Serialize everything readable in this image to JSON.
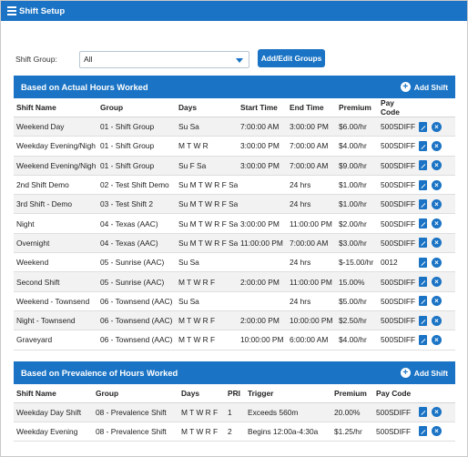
{
  "header": {
    "title": "Shift Setup"
  },
  "filter": {
    "label": "Shift Group:",
    "selected": "All",
    "add_edit_label": "Add/Edit Groups"
  },
  "actual": {
    "title": "Based on Actual Hours Worked",
    "add_label": "Add Shift",
    "columns": [
      "Shift Name",
      "Group",
      "Days",
      "Start Time",
      "End Time",
      "Premium",
      "Pay Code"
    ],
    "rows": [
      [
        "Weekend Day",
        "01 - Shift Group",
        "Su Sa",
        "7:00:00 AM",
        "3:00:00 PM",
        "$6.00/hr",
        "500SDIFF"
      ],
      [
        "Weekday Evening/Nigh",
        "01 - Shift Group",
        "M T W R",
        "3:00:00 PM",
        "7:00:00 AM",
        "$4.00/hr",
        "500SDIFF"
      ],
      [
        "Weekend Evening/Nigh",
        "01 - Shift Group",
        "Su F Sa",
        "3:00:00 PM",
        "7:00:00 AM",
        "$9.00/hr",
        "500SDIFF"
      ],
      [
        "2nd Shift Demo",
        "02 - Test Shift Demo",
        "Su M T W R F Sa",
        "",
        "24 hrs",
        "$1.00/hr",
        "500SDIFF"
      ],
      [
        "3rd Shift - Demo",
        "03 - Test Shift 2",
        "Su M T W R F Sa",
        "",
        "24 hrs",
        "$1.00/hr",
        "500SDIFF"
      ],
      [
        "Night",
        "04 - Texas (AAC)",
        "Su M T W R F Sa",
        "3:00:00 PM",
        "11:00:00 PM",
        "$2.00/hr",
        "500SDIFF"
      ],
      [
        "Overnight",
        "04 - Texas (AAC)",
        "Su M T W R F Sa",
        "11:00:00 PM",
        "7:00:00 AM",
        "$3.00/hr",
        "500SDIFF"
      ],
      [
        "Weekend",
        "05 - Sunrise (AAC)",
        "Su Sa",
        "",
        "24 hrs",
        "$-15.00/hr",
        "0012"
      ],
      [
        "Second Shift",
        "05 - Sunrise (AAC)",
        "M T W R F",
        "2:00:00 PM",
        "11:00:00 PM",
        "15.00%",
        "500SDIFF"
      ],
      [
        "Weekend - Townsend",
        "06 - Townsend (AAC)",
        "Su Sa",
        "",
        "24 hrs",
        "$5.00/hr",
        "500SDIFF"
      ],
      [
        "Night - Townsend",
        "06 - Townsend (AAC)",
        "M T W R F",
        "2:00:00 PM",
        "10:00:00 PM",
        "$2.50/hr",
        "500SDIFF"
      ],
      [
        "Graveyard",
        "06 - Townsend (AAC)",
        "M T W R F",
        "10:00:00 PM",
        "6:00:00 AM",
        "$4.00/hr",
        "500SDIFF"
      ]
    ]
  },
  "prevalence": {
    "title": "Based on Prevalence of Hours Worked",
    "add_label": "Add Shift",
    "columns": [
      "Shift Name",
      "Group",
      "Days",
      "PRI",
      "Trigger",
      "Premium",
      "Pay Code"
    ],
    "rows": [
      [
        "Weekday Day Shift",
        "08 - Prevalence Shift",
        "M T W R F",
        "1",
        "Exceeds 560m",
        "20.00%",
        "500SDIFF"
      ],
      [
        "Weekday Evening",
        "08 - Prevalence Shift",
        "M T W R F",
        "2",
        "Begins 12:00a-4:30a",
        "$1.25/hr",
        "500SDIFF"
      ]
    ]
  },
  "icons": {
    "menu": "hamburger-icon",
    "edit": "edit-icon",
    "delete": "delete-icon",
    "add": "plus-circle-icon",
    "dropdown": "chevron-down-icon"
  },
  "colors": {
    "accent": "#1a73c4",
    "stripe": "#f2f2f2"
  }
}
